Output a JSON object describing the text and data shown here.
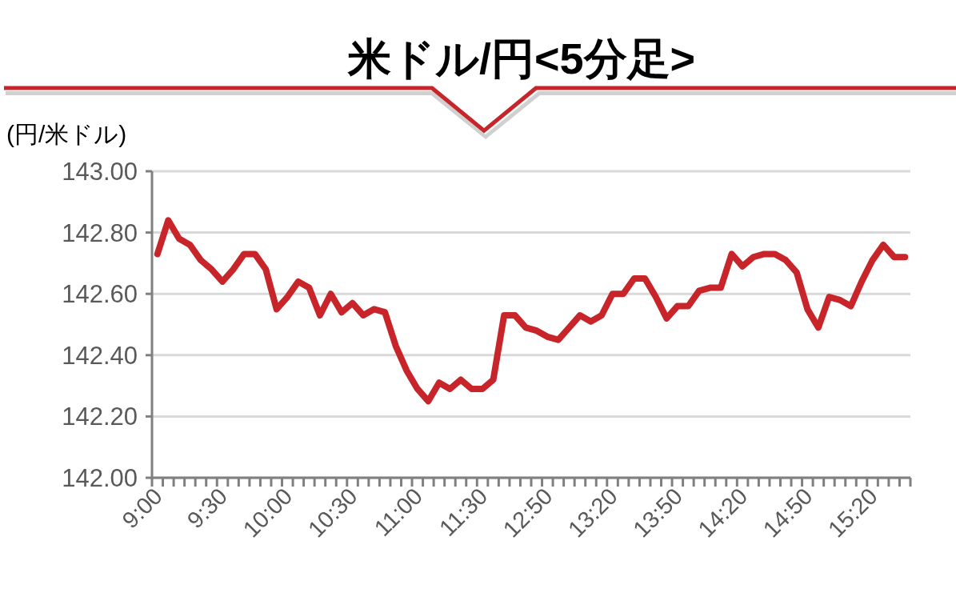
{
  "chart_data": {
    "type": "line",
    "title": "米ドル/円<5分足>",
    "ylabel": "(円/米ドル)",
    "categories": [
      "9:00",
      null,
      null,
      null,
      null,
      null,
      "9:30",
      null,
      null,
      null,
      null,
      null,
      "10:00",
      null,
      null,
      null,
      null,
      null,
      "10:30",
      null,
      null,
      null,
      null,
      null,
      "11:00",
      null,
      null,
      null,
      null,
      null,
      "11:30",
      null,
      null,
      null,
      null,
      null,
      "12:50",
      null,
      null,
      null,
      null,
      null,
      "13:20",
      null,
      null,
      null,
      null,
      null,
      "13:50",
      null,
      null,
      null,
      null,
      null,
      "14:20",
      null,
      null,
      null,
      null,
      null,
      "14:50",
      null,
      null,
      null,
      null,
      null,
      "15:20",
      null,
      null,
      null
    ],
    "series": [
      {
        "color": "#c8252a",
        "values": [
          142.73,
          142.84,
          142.78,
          142.76,
          142.71,
          142.68,
          142.64,
          142.68,
          142.73,
          142.73,
          142.68,
          142.55,
          142.59,
          142.64,
          142.62,
          142.53,
          142.6,
          142.54,
          142.57,
          142.53,
          142.55,
          142.54,
          142.43,
          142.35,
          142.29,
          142.25,
          142.31,
          142.29,
          142.32,
          142.29,
          142.29,
          142.32,
          142.53,
          142.53,
          142.49,
          142.48,
          142.46,
          142.45,
          142.49,
          142.53,
          142.51,
          142.53,
          142.6,
          142.6,
          142.65,
          142.65,
          142.59,
          142.52,
          142.56,
          142.56,
          142.61,
          142.62,
          142.62,
          142.73,
          142.69,
          142.72,
          142.73,
          142.73,
          142.71,
          142.67,
          142.55,
          142.49,
          142.59,
          142.58,
          142.56,
          142.64,
          142.71,
          142.76,
          142.72,
          142.72
        ]
      }
    ],
    "ylim": [
      142,
      143
    ],
    "yticks": [
      {
        "value": 142,
        "label": "142.00"
      },
      {
        "value": 142.2,
        "label": "142.20"
      },
      {
        "value": 142.4,
        "label": "142.40"
      },
      {
        "value": 142.6,
        "label": "142.60"
      },
      {
        "value": 142.8,
        "label": "142.80"
      },
      {
        "value": 143,
        "label": "143.00"
      }
    ],
    "grid": "y",
    "marker": "none",
    "line_style": "solid"
  }
}
